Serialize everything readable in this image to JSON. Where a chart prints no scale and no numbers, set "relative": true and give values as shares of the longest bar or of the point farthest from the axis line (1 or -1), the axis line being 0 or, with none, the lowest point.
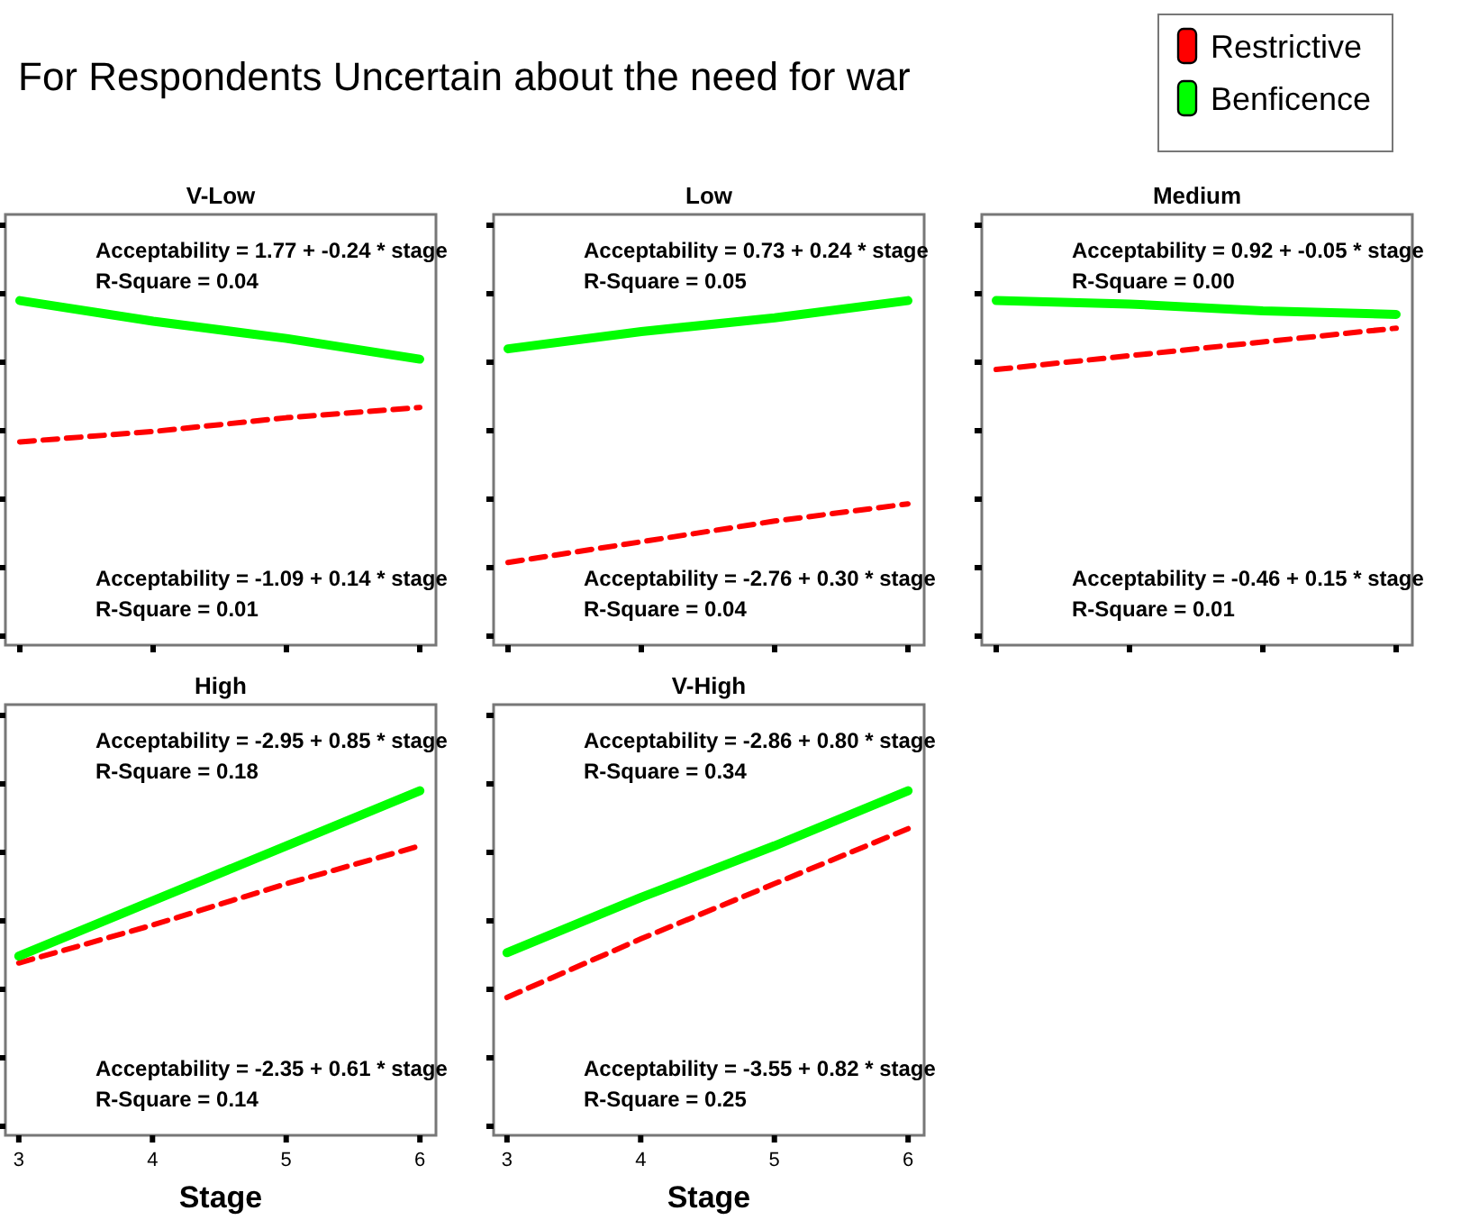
{
  "chart_data": [
    {
      "type": "other",
      "title": "For Respondents Uncertain about the need for war"
    },
    {
      "type": "line",
      "title": "V-Low",
      "categories": [
        null,
        null,
        null,
        null
      ],
      "relative": true,
      "grid": false,
      "marker": "none",
      "series": [
        {
          "color": "#ff0000",
          "line_style": "dashed",
          "values": [
            0.59,
            0.62,
            0.66,
            0.69
          ]
        },
        {
          "color": "#00ff00",
          "line_style": "solid",
          "values": [
            1,
            0.94,
            0.89,
            0.83
          ]
        }
      ],
      "annotations": [
        "Acceptability = 1.77 + -0.24 * stage",
        "R-Square = 0.04",
        "Acceptability = -1.09 + 0.14 * stage",
        "R-Square = 0.01"
      ]
    },
    {
      "type": "line",
      "title": "Low",
      "categories": [
        null,
        null,
        null,
        null
      ],
      "relative": true,
      "grid": false,
      "marker": "none",
      "series": [
        {
          "color": "#ff0000",
          "line_style": "dashed",
          "values": [
            0.24,
            0.3,
            0.36,
            0.41
          ]
        },
        {
          "color": "#00ff00",
          "line_style": "solid",
          "values": [
            0.86,
            0.91,
            0.95,
            1
          ]
        }
      ],
      "annotations": [
        "Acceptability = 0.73 + 0.24 * stage",
        "R-Square = 0.05",
        "Acceptability = -2.76 + 0.30 * stage",
        "R-Square = 0.04"
      ]
    },
    {
      "type": "line",
      "title": "Medium",
      "categories": [
        null,
        null,
        null,
        null
      ],
      "relative": true,
      "grid": false,
      "marker": "none",
      "legend": "top right",
      "series": [
        {
          "name": "Restrictive",
          "color": "#ff0000",
          "line_style": "dashed",
          "values": [
            0.8,
            0.84,
            0.88,
            0.92
          ]
        },
        {
          "name": "Benficence",
          "color": "#00ff00",
          "line_style": "solid",
          "values": [
            1,
            0.99,
            0.97,
            0.96
          ]
        }
      ],
      "annotations": [
        "Acceptability = 0.92 + -0.05 * stage",
        "R-Square = 0.00",
        "Acceptability = -0.46 + 0.15 * stage",
        "R-Square = 0.01"
      ]
    },
    {
      "type": "line",
      "title": "High",
      "xlabel": "Stage",
      "xlim": [
        2.9,
        6.12
      ],
      "xticks": [
        3,
        4,
        5,
        6
      ],
      "relative": true,
      "grid": false,
      "marker": "none",
      "series": [
        {
          "color": "#ff0000",
          "line_style": "dashed",
          "x": [
            3,
            4,
            5,
            6
          ],
          "values": [
            0.5,
            0.61,
            0.73,
            0.84
          ]
        },
        {
          "color": "#00ff00",
          "line_style": "solid",
          "x": [
            3,
            4,
            5,
            6
          ],
          "values": [
            0.52,
            0.68,
            0.84,
            1
          ]
        }
      ],
      "annotations": [
        "Acceptability = -2.95 + 0.85 * stage",
        "R-Square = 0.18",
        "Acceptability = -2.35 + 0.61 * stage",
        "R-Square = 0.14"
      ]
    },
    {
      "type": "line",
      "title": "V-High",
      "xlabel": "Stage",
      "xlim": [
        2.9,
        6.12
      ],
      "xticks": [
        3,
        4,
        5,
        6
      ],
      "relative": true,
      "grid": false,
      "marker": "none",
      "series": [
        {
          "color": "#ff0000",
          "line_style": "dashed",
          "x": [
            3,
            4,
            5,
            6
          ],
          "values": [
            0.4,
            0.57,
            0.73,
            0.89
          ]
        },
        {
          "color": "#00ff00",
          "line_style": "solid",
          "x": [
            3,
            4,
            5,
            6
          ],
          "values": [
            0.53,
            0.69,
            0.84,
            1
          ]
        }
      ],
      "annotations": [
        "Acceptability = -2.86 + 0.80 * stage",
        "R-Square = 0.34",
        "Acceptability = -3.55 + 0.82 * stage",
        "R-Square = 0.25"
      ]
    }
  ]
}
